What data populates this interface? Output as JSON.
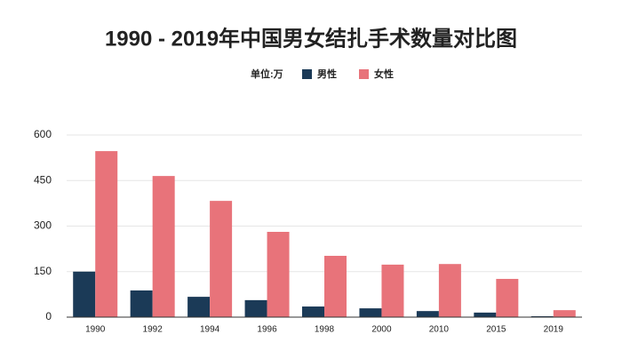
{
  "chart_data": {
    "type": "bar",
    "title": "1990 - 2019年中国男女结扎手术数量对比图",
    "unit_label": "单位:万",
    "categories": [
      "1990",
      "1992",
      "1994",
      "1996",
      "1998",
      "2000",
      "2010",
      "2015",
      "2019"
    ],
    "series": [
      {
        "name": "男性",
        "color": "#1b3a57",
        "values": [
          150,
          88,
          67,
          56,
          35,
          29,
          20,
          15,
          3
        ]
      },
      {
        "name": "女性",
        "color": "#e8737a",
        "values": [
          547,
          465,
          383,
          281,
          202,
          173,
          175,
          126,
          23
        ]
      }
    ],
    "ylim": [
      0,
      600
    ],
    "yticks": [
      0,
      150,
      300,
      450,
      600
    ],
    "grid": true
  }
}
